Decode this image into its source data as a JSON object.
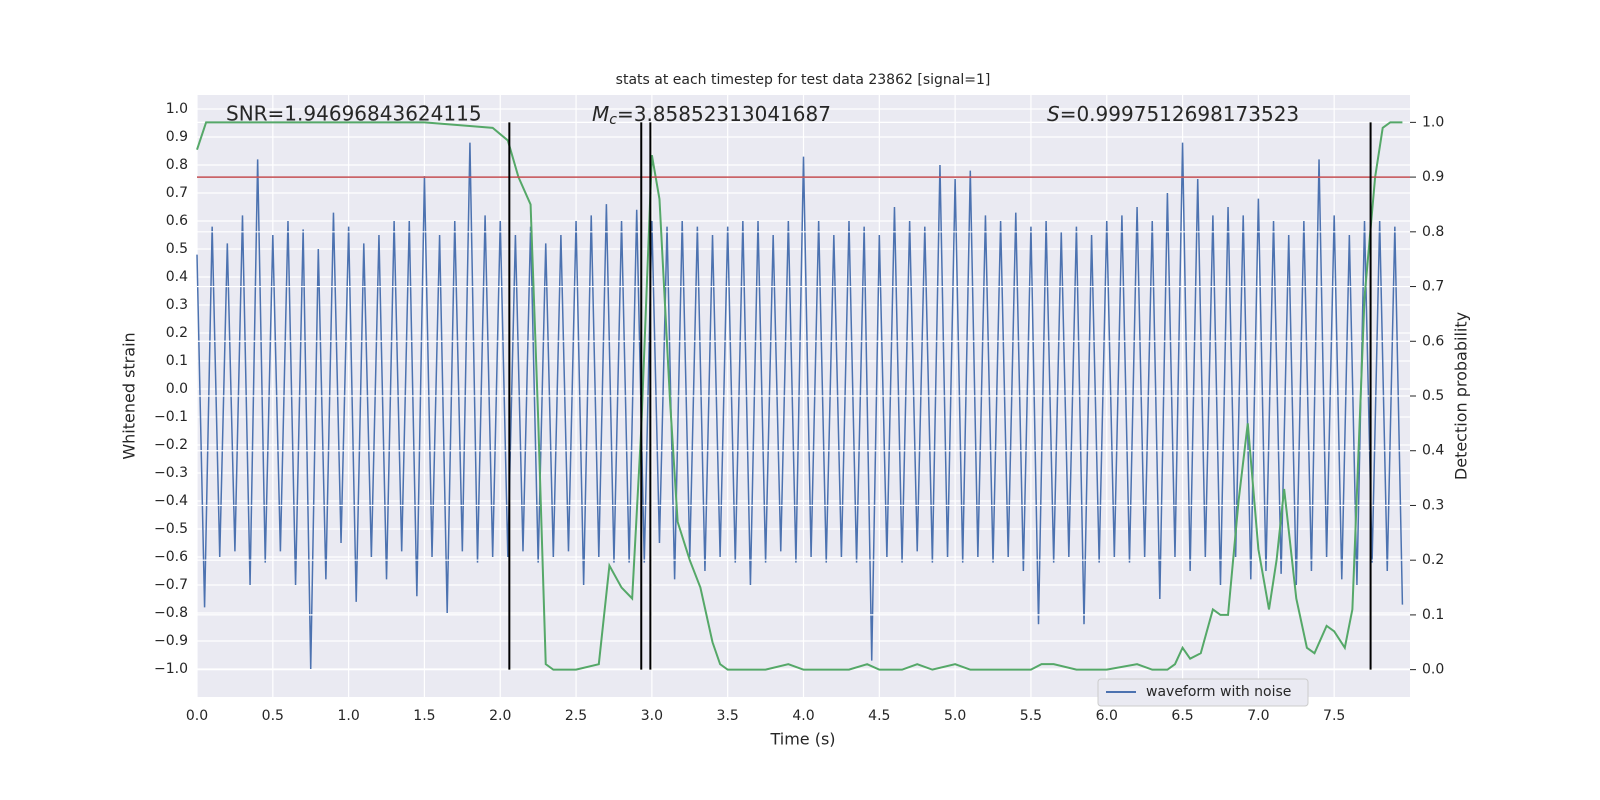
{
  "chart_data": {
    "type": "line",
    "title": "stats at each timestep for test data 23862 [signal=1]",
    "xlabel": "Time (s)",
    "ylabel": "Whitened strain",
    "y2label": "Detection probability",
    "annotations": {
      "snr": "SNR=1.94696843624115",
      "mc": {
        "symbol": "M",
        "subscript": "c",
        "text": "=3.85852313041687"
      },
      "s": {
        "symbol": "S",
        "text": "=0.9997512698173523"
      }
    },
    "xlim": [
      0,
      8
    ],
    "ylim": [
      -1.1,
      1.05
    ],
    "y2lim": [
      -0.05,
      1.05
    ],
    "xticks": [
      {
        "value": 0,
        "label": "0.0"
      },
      {
        "value": 0.5,
        "label": "0.5"
      },
      {
        "value": 1,
        "label": "1.0"
      },
      {
        "value": 1.5,
        "label": "1.5"
      },
      {
        "value": 2,
        "label": "2.0"
      },
      {
        "value": 2.5,
        "label": "2.5"
      },
      {
        "value": 3,
        "label": "3.0"
      },
      {
        "value": 3.5,
        "label": "3.5"
      },
      {
        "value": 4,
        "label": "4.0"
      },
      {
        "value": 4.5,
        "label": "4.5"
      },
      {
        "value": 5,
        "label": "5.0"
      },
      {
        "value": 5.5,
        "label": "5.5"
      },
      {
        "value": 6,
        "label": "6.0"
      },
      {
        "value": 6.5,
        "label": "6.5"
      },
      {
        "value": 7,
        "label": "7.0"
      },
      {
        "value": 7.5,
        "label": "7.5"
      }
    ],
    "yticks": [
      {
        "value": 1,
        "label": "1.0"
      },
      0.9,
      0.8,
      0.7,
      0.6,
      0.5,
      0.4,
      0.3,
      0.2,
      0.1,
      {
        "value": 0,
        "label": "0.0"
      },
      {
        "value": -0.1,
        "label": "−0.1"
      },
      {
        "value": -0.2,
        "label": "−0.2"
      },
      {
        "value": -0.3,
        "label": "−0.3"
      },
      {
        "value": -0.4,
        "label": "−0.4"
      },
      {
        "value": -0.5,
        "label": "−0.5"
      },
      {
        "value": -0.6,
        "label": "−0.6"
      },
      {
        "value": -0.7,
        "label": "−0.7"
      },
      {
        "value": -0.8,
        "label": "−0.8"
      },
      {
        "value": -0.9,
        "label": "−0.9"
      },
      {
        "value": -1,
        "label": "−1.0"
      }
    ],
    "y2ticks": [
      {
        "value": 0,
        "label": "0.0"
      },
      0.1,
      0.2,
      0.3,
      0.4,
      0.5,
      0.6,
      0.7,
      0.8,
      0.9,
      {
        "value": 1,
        "label": "1.0"
      }
    ],
    "grid": true,
    "legend": "lower right",
    "threshold": {
      "value": 0.9,
      "color": "#c44e52",
      "axis": "y2"
    },
    "vlines": {
      "values": [
        2.06,
        2.93,
        2.99,
        7.74
      ],
      "color": "#000000",
      "axis": "y2",
      "from": 0,
      "to": 1
    },
    "series": [
      {
        "name": "waveform with noise",
        "color": "#4c72b0",
        "x": [
          0,
          0.05,
          0.1,
          0.15,
          0.2,
          0.25,
          0.3,
          0.35,
          0.4,
          0.45,
          0.5,
          0.55,
          0.6,
          0.65,
          0.7,
          0.75,
          0.8,
          0.85,
          0.9,
          0.95,
          1,
          1.05,
          1.1,
          1.15,
          1.2,
          1.25,
          1.3,
          1.35,
          1.4,
          1.45,
          1.5,
          1.55,
          1.6,
          1.65,
          1.7,
          1.75,
          1.8,
          1.85,
          1.9,
          1.95,
          2,
          2.05,
          2.1,
          2.15,
          2.2,
          2.25,
          2.3,
          2.35,
          2.4,
          2.45,
          2.5,
          2.55,
          2.6,
          2.65,
          2.7,
          2.75,
          2.8,
          2.85,
          2.9,
          2.95,
          3,
          3.05,
          3.1,
          3.15,
          3.2,
          3.25,
          3.3,
          3.35,
          3.4,
          3.45,
          3.5,
          3.55,
          3.6,
          3.65,
          3.7,
          3.75,
          3.8,
          3.85,
          3.9,
          3.95,
          4,
          4.05,
          4.1,
          4.15,
          4.2,
          4.25,
          4.3,
          4.35,
          4.4,
          4.45,
          4.5,
          4.55,
          4.6,
          4.65,
          4.7,
          4.75,
          4.8,
          4.85,
          4.9,
          4.95,
          5,
          5.05,
          5.1,
          5.15,
          5.2,
          5.25,
          5.3,
          5.35,
          5.4,
          5.45,
          5.5,
          5.55,
          5.6,
          5.65,
          5.7,
          5.75,
          5.8,
          5.85,
          5.9,
          5.95,
          6,
          6.05,
          6.1,
          6.15,
          6.2,
          6.25,
          6.3,
          6.35,
          6.4,
          6.45,
          6.5,
          6.55,
          6.6,
          6.65,
          6.7,
          6.75,
          6.8,
          6.85,
          6.9,
          6.95,
          7,
          7.05,
          7.1,
          7.15,
          7.2,
          7.25,
          7.3,
          7.35,
          7.4,
          7.45,
          7.5,
          7.55,
          7.6,
          7.65,
          7.7,
          7.75,
          7.8,
          7.85,
          7.9,
          7.95
        ],
        "values": [
          0.48,
          -0.78,
          0.58,
          -0.6,
          0.52,
          -0.58,
          0.62,
          -0.7,
          0.82,
          -0.62,
          0.55,
          -0.58,
          0.6,
          -0.7,
          0.57,
          -1.0,
          0.5,
          -0.68,
          0.63,
          -0.55,
          0.58,
          -0.76,
          0.52,
          -0.6,
          0.55,
          -0.68,
          0.6,
          -0.58,
          0.6,
          -0.74,
          0.76,
          -0.6,
          0.55,
          -0.8,
          0.6,
          -0.58,
          0.88,
          -0.62,
          0.62,
          -0.6,
          0.6,
          -0.6,
          0.55,
          -0.58,
          0.58,
          -0.62,
          0.52,
          -0.6,
          0.55,
          -0.58,
          0.6,
          -0.7,
          0.62,
          -0.6,
          0.66,
          -0.62,
          0.6,
          -0.62,
          0.64,
          -0.62,
          0.6,
          -0.55,
          0.58,
          -0.68,
          0.6,
          -0.6,
          0.58,
          -0.65,
          0.55,
          -0.6,
          0.58,
          -0.62,
          0.6,
          -0.7,
          0.6,
          -0.62,
          0.55,
          -0.58,
          0.6,
          -0.62,
          0.83,
          -0.6,
          0.6,
          -0.62,
          0.55,
          -0.6,
          0.6,
          -0.62,
          0.58,
          -0.97,
          0.55,
          -0.6,
          0.65,
          -0.62,
          0.6,
          -0.58,
          0.58,
          -0.62,
          0.8,
          -0.6,
          0.75,
          -0.62,
          0.78,
          -0.6,
          0.62,
          -0.62,
          0.6,
          -0.6,
          0.63,
          -0.65,
          0.58,
          -0.84,
          0.6,
          -0.62,
          0.56,
          -0.6,
          0.58,
          -0.84,
          0.55,
          -0.62,
          0.6,
          -0.6,
          0.62,
          -0.62,
          0.65,
          -0.6,
          0.6,
          -0.75,
          0.7,
          -0.6,
          0.88,
          -0.65,
          0.75,
          -0.6,
          0.62,
          -0.7,
          0.65,
          -0.6,
          0.62,
          -0.68,
          0.68,
          -0.65,
          0.6,
          -0.66,
          0.55,
          -0.7,
          0.6,
          -0.65,
          0.82,
          -0.6,
          0.62,
          -0.68,
          0.55,
          -0.7,
          0.6,
          -0.62,
          0.6,
          -0.65,
          0.58,
          -0.77
        ]
      },
      {
        "color": "#55a868",
        "axis": "y2",
        "x": [
          0,
          0.06,
          0.5,
          1.0,
          1.5,
          1.95,
          2.05,
          2.12,
          2.2,
          2.25,
          2.3,
          2.35,
          2.5,
          2.65,
          2.72,
          2.8,
          2.87,
          2.93,
          3.0,
          3.05,
          3.12,
          3.17,
          3.25,
          3.32,
          3.4,
          3.45,
          3.5,
          3.75,
          3.9,
          4.0,
          4.3,
          4.42,
          4.5,
          4.65,
          4.75,
          4.85,
          5.0,
          5.1,
          5.5,
          5.57,
          5.65,
          5.8,
          6.0,
          6.2,
          6.3,
          6.4,
          6.45,
          6.5,
          6.55,
          6.62,
          6.7,
          6.75,
          6.8,
          6.87,
          6.93,
          7.0,
          7.07,
          7.12,
          7.17,
          7.25,
          7.32,
          7.37,
          7.45,
          7.5,
          7.57,
          7.62,
          7.7,
          7.77,
          7.82,
          7.87,
          7.95
        ],
        "values": [
          0.95,
          1.0,
          1.0,
          1.0,
          1.0,
          0.99,
          0.967,
          0.9,
          0.85,
          0.46,
          0.01,
          0.0,
          0.0,
          0.01,
          0.19,
          0.15,
          0.13,
          0.44,
          0.94,
          0.86,
          0.49,
          0.27,
          0.2,
          0.15,
          0.05,
          0.01,
          0.0,
          0.0,
          0.01,
          0.0,
          0.0,
          0.01,
          0.0,
          0.0,
          0.01,
          0.0,
          0.01,
          0.0,
          0.0,
          0.01,
          0.01,
          0.0,
          0.0,
          0.01,
          0.0,
          0.0,
          0.01,
          0.04,
          0.02,
          0.03,
          0.11,
          0.1,
          0.1,
          0.31,
          0.45,
          0.22,
          0.11,
          0.2,
          0.33,
          0.13,
          0.04,
          0.03,
          0.08,
          0.07,
          0.04,
          0.11,
          0.68,
          0.9,
          0.99,
          1.0,
          1.0
        ]
      }
    ]
  }
}
